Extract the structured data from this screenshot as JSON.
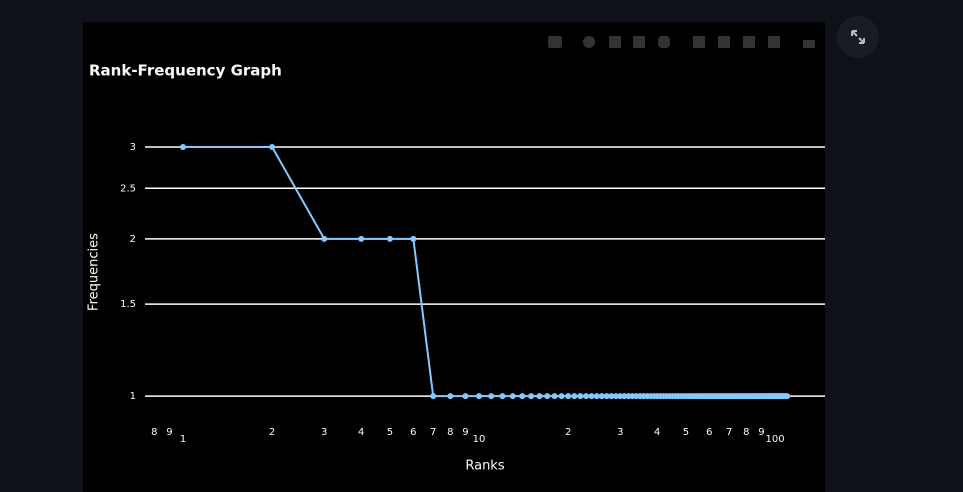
{
  "chart_data": {
    "type": "line",
    "title": "Rank-Frequency Graph",
    "x_label": "Ranks",
    "y_label": "Frequencies",
    "log_x": true,
    "log_y": true,
    "grid": true,
    "x": [
      1,
      2,
      3,
      4,
      5,
      6,
      7,
      8,
      9,
      10,
      11,
      12,
      13,
      14,
      15,
      16,
      17,
      18,
      19,
      20,
      21,
      22,
      23,
      24,
      25,
      26,
      27,
      28,
      29,
      30,
      31,
      32,
      33,
      34,
      35,
      36,
      37,
      38,
      39,
      40,
      41,
      42,
      43,
      44,
      45,
      46,
      47,
      48,
      49,
      50,
      51,
      52,
      53,
      54,
      55,
      56,
      57,
      58,
      59,
      60,
      61,
      62,
      63,
      64,
      65,
      66,
      67,
      68,
      69,
      70,
      71,
      72,
      73,
      74,
      75,
      76,
      77,
      78,
      79,
      80,
      81,
      82,
      83,
      84,
      85,
      86,
      87,
      88,
      89,
      90,
      91,
      92,
      93,
      94,
      95,
      96,
      97,
      98,
      99,
      100,
      101,
      102,
      103,
      104,
      105,
      106,
      107,
      108,
      109,
      110
    ],
    "series": [
      {
        "name": "Frequencies",
        "color": "#83c9ff",
        "values": [
          3,
          3,
          2,
          2,
          2,
          2,
          1,
          1,
          1,
          1,
          1,
          1,
          1,
          1,
          1,
          1,
          1,
          1,
          1,
          1,
          1,
          1,
          1,
          1,
          1,
          1,
          1,
          1,
          1,
          1,
          1,
          1,
          1,
          1,
          1,
          1,
          1,
          1,
          1,
          1,
          1,
          1,
          1,
          1,
          1,
          1,
          1,
          1,
          1,
          1,
          1,
          1,
          1,
          1,
          1,
          1,
          1,
          1,
          1,
          1,
          1,
          1,
          1,
          1,
          1,
          1,
          1,
          1,
          1,
          1,
          1,
          1,
          1,
          1,
          1,
          1,
          1,
          1,
          1,
          1,
          1,
          1,
          1,
          1,
          1,
          1,
          1,
          1,
          1,
          1,
          1,
          1,
          1,
          1,
          1,
          1,
          1,
          1,
          1,
          1,
          1,
          1,
          1,
          1,
          1,
          1,
          1,
          1,
          1,
          1
        ]
      }
    ],
    "xlim": [
      0.744,
      147.5
    ],
    "xticks": [
      {
        "value": 0.8,
        "label": "8"
      },
      {
        "value": 0.9,
        "label": "9"
      },
      1,
      2,
      3,
      4,
      5,
      6,
      7,
      8,
      9,
      10,
      {
        "value": 20,
        "label": "2"
      },
      {
        "value": 30,
        "label": "3"
      },
      {
        "value": 40,
        "label": "4"
      },
      {
        "value": 50,
        "label": "5"
      },
      {
        "value": 60,
        "label": "6"
      },
      {
        "value": 70,
        "label": "7"
      },
      {
        "value": 80,
        "label": "8"
      },
      {
        "value": 90,
        "label": "9"
      },
      100
    ],
    "ylim": [
      0.92,
      3.69
    ],
    "yticks": [
      1,
      1.5,
      2,
      2.5,
      3
    ]
  }
}
